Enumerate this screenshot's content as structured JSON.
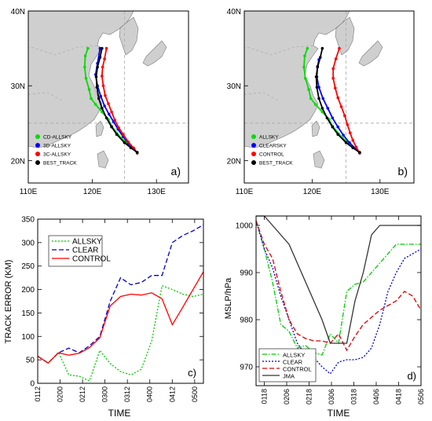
{
  "chart_data": [
    {
      "id": "a",
      "type": "line",
      "kind": "track-map",
      "panel_label": "a)",
      "lon_range": [
        110,
        135
      ],
      "lat_range": [
        17,
        40
      ],
      "x_ticks": [
        {
          "v": 110,
          "label": "110E"
        },
        {
          "v": 120,
          "label": "120E"
        },
        {
          "v": 130,
          "label": "130E"
        }
      ],
      "y_ticks": [
        {
          "v": 20,
          "label": "20N"
        },
        {
          "v": 30,
          "label": "30N"
        },
        {
          "v": 40,
          "label": "40N"
        }
      ],
      "dashed_lon": [
        125
      ],
      "dashed_lat": [
        25
      ],
      "legend_position": "bottom-left",
      "series": [
        {
          "name": "CD-ALLSKY",
          "color": "#00dd00",
          "lon": [
            127.0,
            126.4,
            125.5,
            124.5,
            123.0,
            122.5,
            121.5,
            120.5,
            119.8,
            119.5,
            119.0,
            118.8,
            118.9,
            119.3
          ],
          "lat": [
            21.0,
            21.6,
            22.3,
            23.0,
            24.6,
            25.5,
            26.5,
            27.5,
            28.3,
            29.5,
            31.0,
            32.5,
            34.0,
            35.0
          ]
        },
        {
          "name": "3D-ALLSKY",
          "color": "#0000ff",
          "lon": [
            127.0,
            126.5,
            125.6,
            124.8,
            124.0,
            123.3,
            122.6,
            121.9,
            121.3,
            120.8,
            120.5,
            120.8,
            121.2
          ],
          "lat": [
            21.0,
            21.6,
            22.3,
            23.2,
            24.2,
            25.2,
            26.2,
            27.3,
            28.6,
            30.0,
            31.5,
            33.0,
            35.0
          ]
        },
        {
          "name": "3C-ALLSKY",
          "color": "#ff0000",
          "lon": [
            127.0,
            126.4,
            125.6,
            124.8,
            124.1,
            123.5,
            123.0,
            122.5,
            122.0,
            121.7,
            121.5,
            121.6,
            121.9,
            122.2
          ],
          "lat": [
            21.0,
            21.7,
            22.5,
            23.5,
            24.4,
            25.4,
            26.5,
            27.6,
            28.7,
            30.0,
            31.3,
            32.5,
            33.6,
            35.0
          ]
        },
        {
          "name": "BEST_TRACK",
          "color": "#000000",
          "lon": [
            127.0,
            126.0,
            125.0,
            123.8,
            123.0,
            122.2,
            121.5,
            121.0,
            120.7,
            120.6,
            120.8,
            121.2,
            121.5
          ],
          "lat": [
            21.1,
            21.7,
            22.4,
            23.5,
            24.5,
            25.7,
            27.0,
            28.3,
            29.8,
            31.2,
            32.5,
            33.8,
            35.0
          ]
        }
      ]
    },
    {
      "id": "b",
      "type": "line",
      "kind": "track-map",
      "panel_label": "b)",
      "lon_range": [
        110,
        135
      ],
      "lat_range": [
        17,
        40
      ],
      "x_ticks": [
        {
          "v": 110,
          "label": "110E"
        },
        {
          "v": 120,
          "label": "120E"
        },
        {
          "v": 130,
          "label": "130E"
        }
      ],
      "y_ticks": [
        {
          "v": 20,
          "label": "20N"
        },
        {
          "v": 30,
          "label": "30N"
        },
        {
          "v": 40,
          "label": "40N"
        }
      ],
      "dashed_lon": [
        125
      ],
      "dashed_lat": [
        25
      ],
      "legend_position": "bottom-left",
      "series": [
        {
          "name": "ALLSKY",
          "color": "#00dd00",
          "lon": [
            127.0,
            126.4,
            125.5,
            124.5,
            123.0,
            122.5,
            121.5,
            120.5,
            119.8,
            119.5,
            119.0,
            118.8,
            118.9,
            119.3
          ],
          "lat": [
            21.0,
            21.6,
            22.3,
            23.0,
            24.6,
            25.5,
            26.5,
            27.5,
            28.3,
            29.5,
            31.0,
            32.5,
            34.0,
            35.0
          ]
        },
        {
          "name": "CLEARSKY",
          "color": "#0000ff",
          "lon": [
            127.0,
            126.4,
            125.5,
            124.6,
            123.8,
            123.0,
            122.3,
            121.6,
            121.0,
            120.7,
            120.8,
            121.0
          ],
          "lat": [
            21.0,
            21.6,
            22.4,
            23.4,
            24.5,
            25.7,
            27.0,
            28.3,
            29.8,
            31.2,
            32.6,
            33.5
          ]
        },
        {
          "name": "CONTROL",
          "color": "#ff0000",
          "lon": [
            127.0,
            126.5,
            126.0,
            125.6,
            125.2,
            124.8,
            124.3,
            123.8,
            123.4,
            123.1,
            123.1,
            123.5,
            124.0
          ],
          "lat": [
            21.0,
            21.8,
            22.7,
            23.7,
            24.8,
            26.0,
            27.2,
            28.4,
            29.7,
            31.0,
            32.3,
            33.6,
            35.0
          ]
        },
        {
          "name": "BEST_TRACK",
          "color": "#000000",
          "lon": [
            127.0,
            126.0,
            125.0,
            123.8,
            123.0,
            122.2,
            121.5,
            121.0,
            120.7,
            120.6,
            120.8,
            121.2,
            121.5
          ],
          "lat": [
            21.1,
            21.7,
            22.4,
            23.5,
            24.5,
            25.7,
            27.0,
            28.3,
            29.8,
            31.2,
            32.5,
            33.8,
            35.0
          ]
        }
      ]
    },
    {
      "id": "c",
      "type": "line",
      "panel_label": "c)",
      "xlabel": "TIME",
      "ylabel": "TRACK ERROR (KM)",
      "categories": [
        "0112",
        "0200",
        "0212",
        "0300",
        "0312",
        "0400",
        "0412",
        "0500"
      ],
      "x": [
        0,
        1,
        2,
        3,
        4,
        5,
        6,
        7,
        8,
        9,
        10,
        11,
        12,
        13,
        14,
        15,
        16
      ],
      "ylim": [
        0,
        350
      ],
      "y_ticks": [
        0,
        50,
        100,
        150,
        200,
        250,
        300,
        350
      ],
      "legend_position": "top-left",
      "series": [
        {
          "name": "ALLSKY",
          "color": "#00cc00",
          "dash": "dotted",
          "values": [
            58,
            43,
            66,
            18,
            15,
            5,
            70,
            42,
            25,
            18,
            30,
            90,
            208,
            200,
            190,
            185,
            190
          ]
        },
        {
          "name": "CLEAR",
          "color": "#0000cc",
          "dash": "dashed",
          "values": [
            58,
            43,
            65,
            75,
            65,
            80,
            100,
            175,
            225,
            210,
            215,
            230,
            230,
            300,
            315,
            325,
            338
          ]
        },
        {
          "name": "CONTROL",
          "color": "#ff0000",
          "dash": "solid",
          "values": [
            58,
            43,
            65,
            60,
            64,
            76,
            97,
            165,
            185,
            190,
            188,
            193,
            180,
            125,
            162,
            200,
            238
          ]
        }
      ]
    },
    {
      "id": "d",
      "type": "line",
      "panel_label": "d)",
      "xlabel": "TIME",
      "ylabel": "MSLP/hPa",
      "categories": [
        "0118",
        "0206",
        "0218",
        "0306",
        "0318",
        "0406",
        "0418",
        "0506"
      ],
      "x": [
        0,
        1,
        2,
        3,
        4,
        5,
        6,
        7,
        8,
        9,
        10,
        11,
        12,
        13,
        14,
        15,
        16,
        17,
        18,
        19,
        20
      ],
      "ylim": [
        966,
        1002
      ],
      "y_ticks": [
        970,
        980,
        990,
        1000
      ],
      "legend_position": "bottom-left",
      "series": [
        {
          "name": "ALLSKY",
          "color": "#00cc00",
          "dash": "dashdot",
          "values": [
            1001,
            995,
            988,
            979,
            977.5,
            974,
            974.5,
            973,
            972.5,
            977,
            975,
            986,
            987.5,
            988,
            990,
            992,
            994,
            996,
            996,
            996,
            996
          ]
        },
        {
          "name": "CLEAR",
          "color": "#0000cc",
          "dash": "dotted",
          "values": [
            1001,
            995,
            991,
            985,
            980,
            975,
            972.5,
            972,
            970,
            968.5,
            971,
            971.5,
            971.5,
            972,
            974,
            979,
            986,
            990,
            993,
            994,
            995
          ]
        },
        {
          "name": "CONTROL",
          "color": "#dd0000",
          "dash": "dashed",
          "values": [
            1001,
            996,
            993,
            986,
            980,
            977,
            976,
            975.5,
            975.5,
            975,
            977,
            973.5,
            976.5,
            979,
            980.5,
            982,
            983,
            984,
            986,
            985,
            982
          ]
        },
        {
          "name": "JMA",
          "color": "#333333",
          "dash": "solid",
          "values": [
            1002,
            1002,
            1000,
            998,
            996,
            992,
            988,
            984,
            980,
            975,
            975,
            975,
            984,
            990,
            998,
            1000,
            1000,
            1000,
            1000,
            1000,
            1000
          ]
        }
      ]
    }
  ]
}
